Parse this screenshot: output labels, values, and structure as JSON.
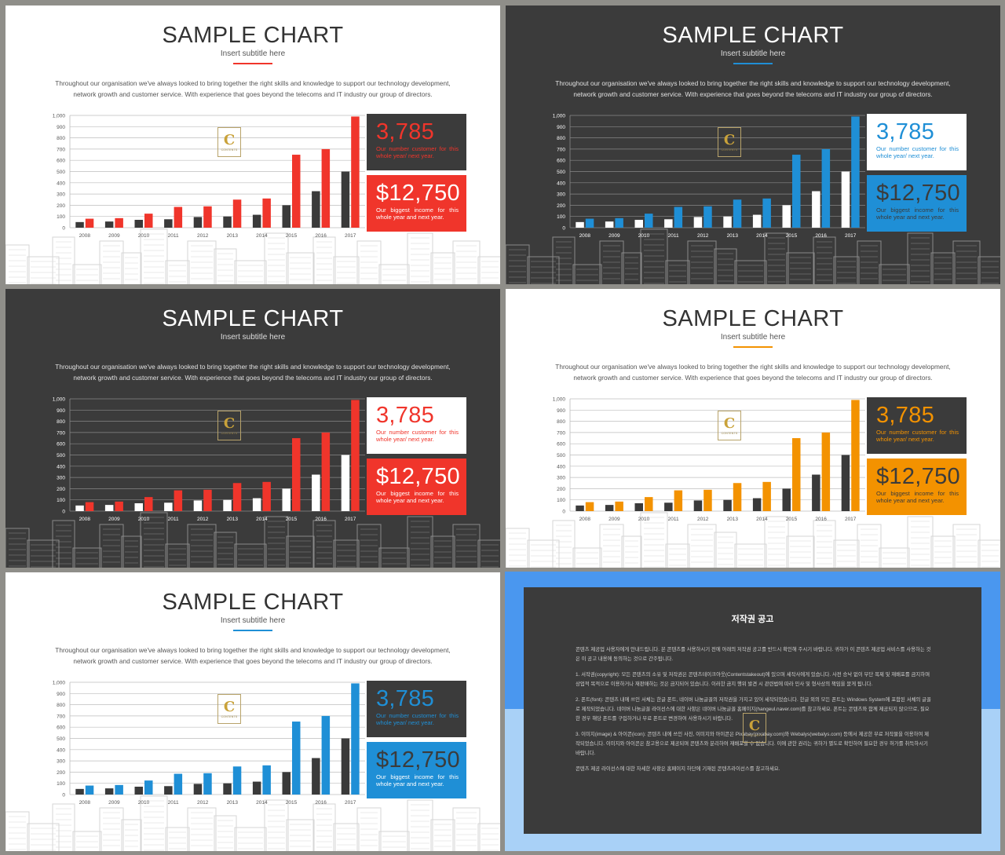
{
  "slides": [
    {
      "theme": "light",
      "bar_color": "#f0352b",
      "underline": "#f0352b",
      "box1_bg": "#3b3b3b",
      "box1_big": "#f0352b",
      "box1_small": "#f0352b",
      "box2_bg": "#f0352b",
      "box2_big": "#ffffff",
      "box2_small": "#ffffff",
      "dark_bar": "#3a3a3a"
    },
    {
      "theme": "dark",
      "bar_color": "#1f8fd6",
      "underline": "#1f8fd6",
      "box1_bg": "#ffffff",
      "box1_big": "#1f8fd6",
      "box1_small": "#1f8fd6",
      "box2_bg": "#1f8fd6",
      "box2_big": "#3b3b3b",
      "box2_small": "#3b3b3b",
      "dark_bar": "#ffffff"
    },
    {
      "theme": "dark",
      "bar_color": "#f0352b",
      "underline": "#3b3b3b",
      "box1_bg": "#ffffff",
      "box1_big": "#f0352b",
      "box1_small": "#f0352b",
      "box2_bg": "#f0352b",
      "box2_big": "#ffffff",
      "box2_small": "#ffffff",
      "dark_bar": "#ffffff"
    },
    {
      "theme": "light",
      "bar_color": "#f39200",
      "underline": "#f39200",
      "box1_bg": "#3b3b3b",
      "box1_big": "#f39200",
      "box1_small": "#f39200",
      "box2_bg": "#f39200",
      "box2_big": "#3b3b3b",
      "box2_small": "#3b3b3b",
      "dark_bar": "#3a3a3a"
    },
    {
      "theme": "light",
      "bar_color": "#1f8fd6",
      "underline": "#1f8fd6",
      "box1_bg": "#3b3b3b",
      "box1_big": "#1f8fd6",
      "box1_small": "#1f8fd6",
      "box2_bg": "#1f8fd6",
      "box2_big": "#3b3b3b",
      "box2_small": "#ffffff",
      "dark_bar": "#3a3a3a"
    }
  ],
  "content": {
    "title": "SAMPLE CHART",
    "subtitle": "Insert subtitle here",
    "para_line1": "Throughout our organisation we've always looked to bring together the right skills and knowledge to support our technology development,",
    "para_line2": "network growth and customer service. With experience that goes beyond the telecoms and IT industry our group of directors.",
    "box1_value": "3,785",
    "box1_text": "Our number customer for this whole year/ next year.",
    "box2_value": "$12,750",
    "box2_text": "Our biggest income for this whole year and next year.",
    "logo_letter": "C",
    "logo_text": "CONTENTS"
  },
  "chart_data": {
    "type": "bar",
    "categories": [
      "2008",
      "2009",
      "2010",
      "2011",
      "2012",
      "2013",
      "2014",
      "2015",
      "2016",
      "2017"
    ],
    "series": [
      {
        "values": [
          50,
          55,
          70,
          75,
          95,
          100,
          115,
          200,
          325,
          500
        ]
      },
      {
        "values": [
          80,
          85,
          125,
          185,
          190,
          250,
          260,
          650,
          700,
          990
        ]
      }
    ],
    "yticks": [
      "0",
      "100",
      "200",
      "300",
      "400",
      "500",
      "600",
      "700",
      "800",
      "900",
      "1,000"
    ],
    "ylim": [
      0,
      1000
    ]
  },
  "notice": {
    "title": "저작권 공고",
    "paragraphs": [
      "콘텐츠 제공업 사용자에게 안내드립니다. 본 콘텐츠를 사용하시기 전에 아래의 저작권 공고를 반드시 확인해 주시기 바랍니다. 귀하가 이 콘텐츠 제공업 서비스를 사용하는 것은 이 공고 내용에 동의하는 것으로 간주됩니다.",
      "1. 서작권(copyright): 모든 콘텐츠의 소유 및 저작권은 콘텐츠테이크아웃(Contentstakeout)에 있으며 세작사에게 있습니다. 사전 승낙 없이 무단 복제 및 재배포를 금지하며 상업적 목적으로 이용하거나 재판매하는 것은 금지되어 있습니다. 이러한 금지 행위 발견 시 관련법에 따라 민사 및 형사상의 책임을 묻게 됩니다.",
      "2. 폰트(font): 콘텐츠 내에 쓰인 서체는 한글 폰트, 네이버 나눔글꼴의 저작권을 가지고 있어 세작되었습니다. 한글 외의 모든 폰트는 Windows System에 포함된 서체의 글꼴로 제작되었습니다. 네이버 나눔글꼴 라이선스에 대한 사항은 네이버 나눔글꼴 홈페이지(hangeul.naver.com)를 참고하세요. 폰트는 콘텐츠와 함께 제공되지 않으므로, 필요한 경우 해당 폰트를 구입하거나 무료 폰트로 변경하여 사용하시기 바랍니다.",
      "3. 이미지(image) & 아이콘(icon): 콘텐츠 내에 쓰인 사진, 이미지와 아이콘은 Pixabay(pixabay.com)와 Webalys(webalys.com) 등에서 제공한 무료 저작물을 이용하여 제작되었습니다. 이미지와 아이콘은 참고용으로 제공되며 콘텐츠와 분리하여 재배포할 수 없습니다. 이에 관한 권리는 귀하가 별도로 확인하여 필요한 경우 허가를 취득하시기 바랍니다.",
      "콘텐츠 제공 라이선스에 대한 자세한 사항은 홈페이지 하단에 기재된 콘텐츠라이선스를 참고하세요."
    ]
  }
}
